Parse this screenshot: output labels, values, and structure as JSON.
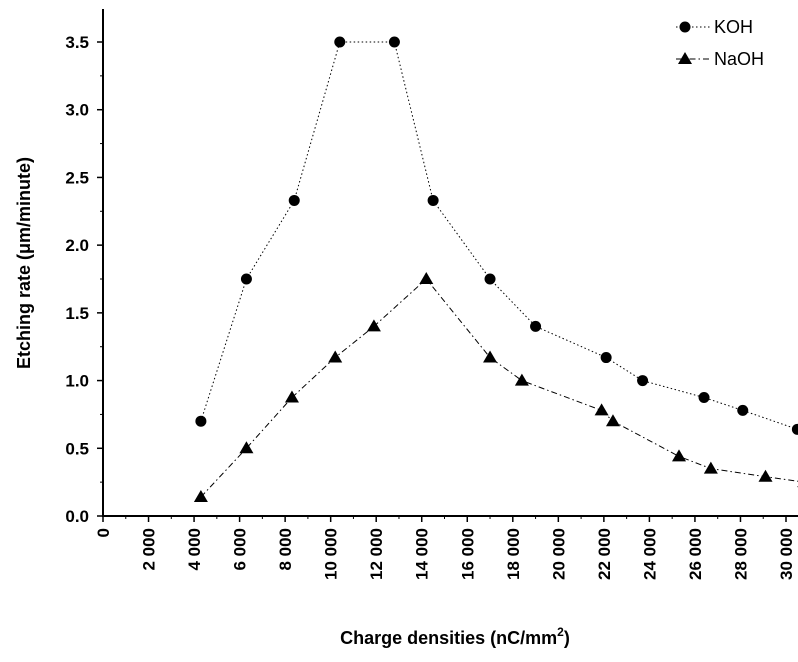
{
  "chart_data": {
    "type": "line",
    "title": "",
    "xlabel": {
      "main": "Charge densities (nC/mm",
      "superscript": "2",
      "close": ")"
    },
    "ylabel": "Etching rate (μm/minute)",
    "xlim": [
      0,
      30500
    ],
    "ylim": [
      0,
      3.7
    ],
    "xticks": [
      0,
      2000,
      4000,
      6000,
      8000,
      10000,
      12000,
      14000,
      16000,
      18000,
      20000,
      22000,
      24000,
      26000,
      28000,
      30000
    ],
    "xtick_labels": [
      "0",
      "2 000",
      "4 000",
      "6 000",
      "8 000",
      "10 000",
      "12 000",
      "14 000",
      "16 000",
      "18 000",
      "20 000",
      "22 000",
      "24 000",
      "26 000",
      "28 000",
      "30 000"
    ],
    "yticks": [
      0.0,
      0.5,
      1.0,
      1.5,
      2.0,
      2.5,
      3.0,
      3.5
    ],
    "ytick_labels": [
      "0.0",
      "0.5",
      "1.0",
      "1.5",
      "2.0",
      "2.5",
      "3.0",
      "3.5"
    ],
    "grid": false,
    "legend_position": "top-right",
    "series": [
      {
        "name": "KOH",
        "marker": "circle",
        "line_style": "dotted",
        "color": "#000000",
        "x": [
          4300,
          6300,
          8400,
          10400,
          12800,
          14500,
          17000,
          19000,
          22100,
          23700,
          26400,
          28100,
          30500
        ],
        "y": [
          0.7,
          1.75,
          2.33,
          3.5,
          3.5,
          2.33,
          1.75,
          1.4,
          1.17,
          1.0,
          0.875,
          0.78,
          0.64
        ]
      },
      {
        "name": "NaOH",
        "marker": "triangle",
        "line_style": "dash-dot",
        "color": "#000000",
        "x": [
          4300,
          6300,
          8300,
          10200,
          11900,
          14200,
          17000,
          18400,
          21900,
          22400,
          25300,
          26700,
          29100,
          30800
        ],
        "y": [
          0.14,
          0.5,
          0.875,
          1.17,
          1.4,
          1.75,
          1.17,
          1.0,
          0.78,
          0.7,
          0.44,
          0.35,
          0.29,
          0.25
        ]
      }
    ]
  }
}
